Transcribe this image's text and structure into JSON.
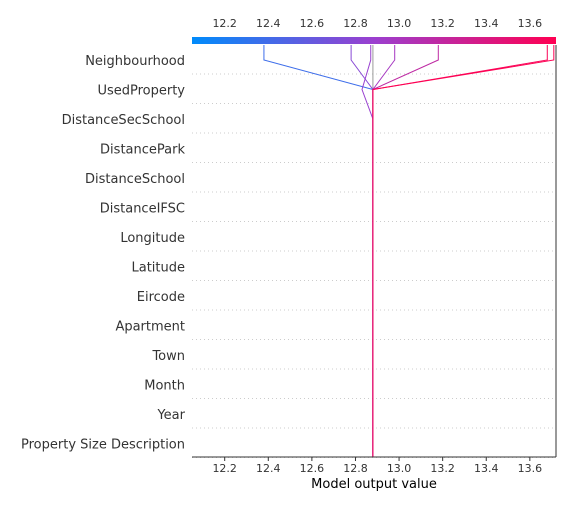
{
  "chart_data": {
    "type": "line",
    "title": "",
    "xlabel": "Model output value",
    "ylabel": "",
    "xlim": [
      12.05,
      13.72
    ],
    "x_ticks": [
      "12.2",
      "12.4",
      "12.6",
      "12.8",
      "13.0",
      "13.2",
      "13.4",
      "13.6"
    ],
    "x_tick_values": [
      12.2,
      12.4,
      12.6,
      12.8,
      13.0,
      13.2,
      13.4,
      13.6
    ],
    "base_value": 12.88,
    "features": [
      "Property Size Description",
      "Year",
      "Month",
      "Town",
      "Apartment",
      "Eircode",
      "Latitude",
      "Longitude",
      "DistanceIFSC",
      "DistanceSchool",
      "DistancePark",
      "DistanceSecSchool",
      "UsedProperty",
      "Neighbourhood"
    ],
    "colormap": {
      "low": "#008bfb",
      "mid": "#9b3fcf",
      "high": "#ff0052"
    },
    "series": [
      {
        "values": [
          12.88,
          12.88,
          12.88,
          12.88,
          12.88,
          12.88,
          12.88,
          12.88,
          12.88,
          12.88,
          12.88,
          12.88,
          12.88,
          12.38
        ]
      },
      {
        "values": [
          12.88,
          12.88,
          12.88,
          12.88,
          12.88,
          12.88,
          12.88,
          12.88,
          12.88,
          12.88,
          12.88,
          12.88,
          12.88,
          12.78
        ]
      },
      {
        "values": [
          12.88,
          12.88,
          12.88,
          12.88,
          12.88,
          12.88,
          12.88,
          12.88,
          12.88,
          12.88,
          12.88,
          12.88,
          12.88,
          12.98
        ]
      },
      {
        "values": [
          12.88,
          12.88,
          12.88,
          12.88,
          12.88,
          12.88,
          12.88,
          12.88,
          12.88,
          12.88,
          12.88,
          12.88,
          12.88,
          13.18
        ]
      },
      {
        "values": [
          12.88,
          12.88,
          12.88,
          12.88,
          12.88,
          12.88,
          12.88,
          12.88,
          12.88,
          12.88,
          12.88,
          12.88,
          12.88,
          13.68
        ]
      },
      {
        "values": [
          12.88,
          12.88,
          12.88,
          12.88,
          12.88,
          12.88,
          12.88,
          12.88,
          12.88,
          12.88,
          12.88,
          12.88,
          12.83,
          12.87
        ]
      },
      {
        "values": [
          12.88,
          12.88,
          12.88,
          12.88,
          12.88,
          12.88,
          12.88,
          12.88,
          12.88,
          12.88,
          12.88,
          12.88,
          12.88,
          13.71
        ]
      }
    ]
  }
}
